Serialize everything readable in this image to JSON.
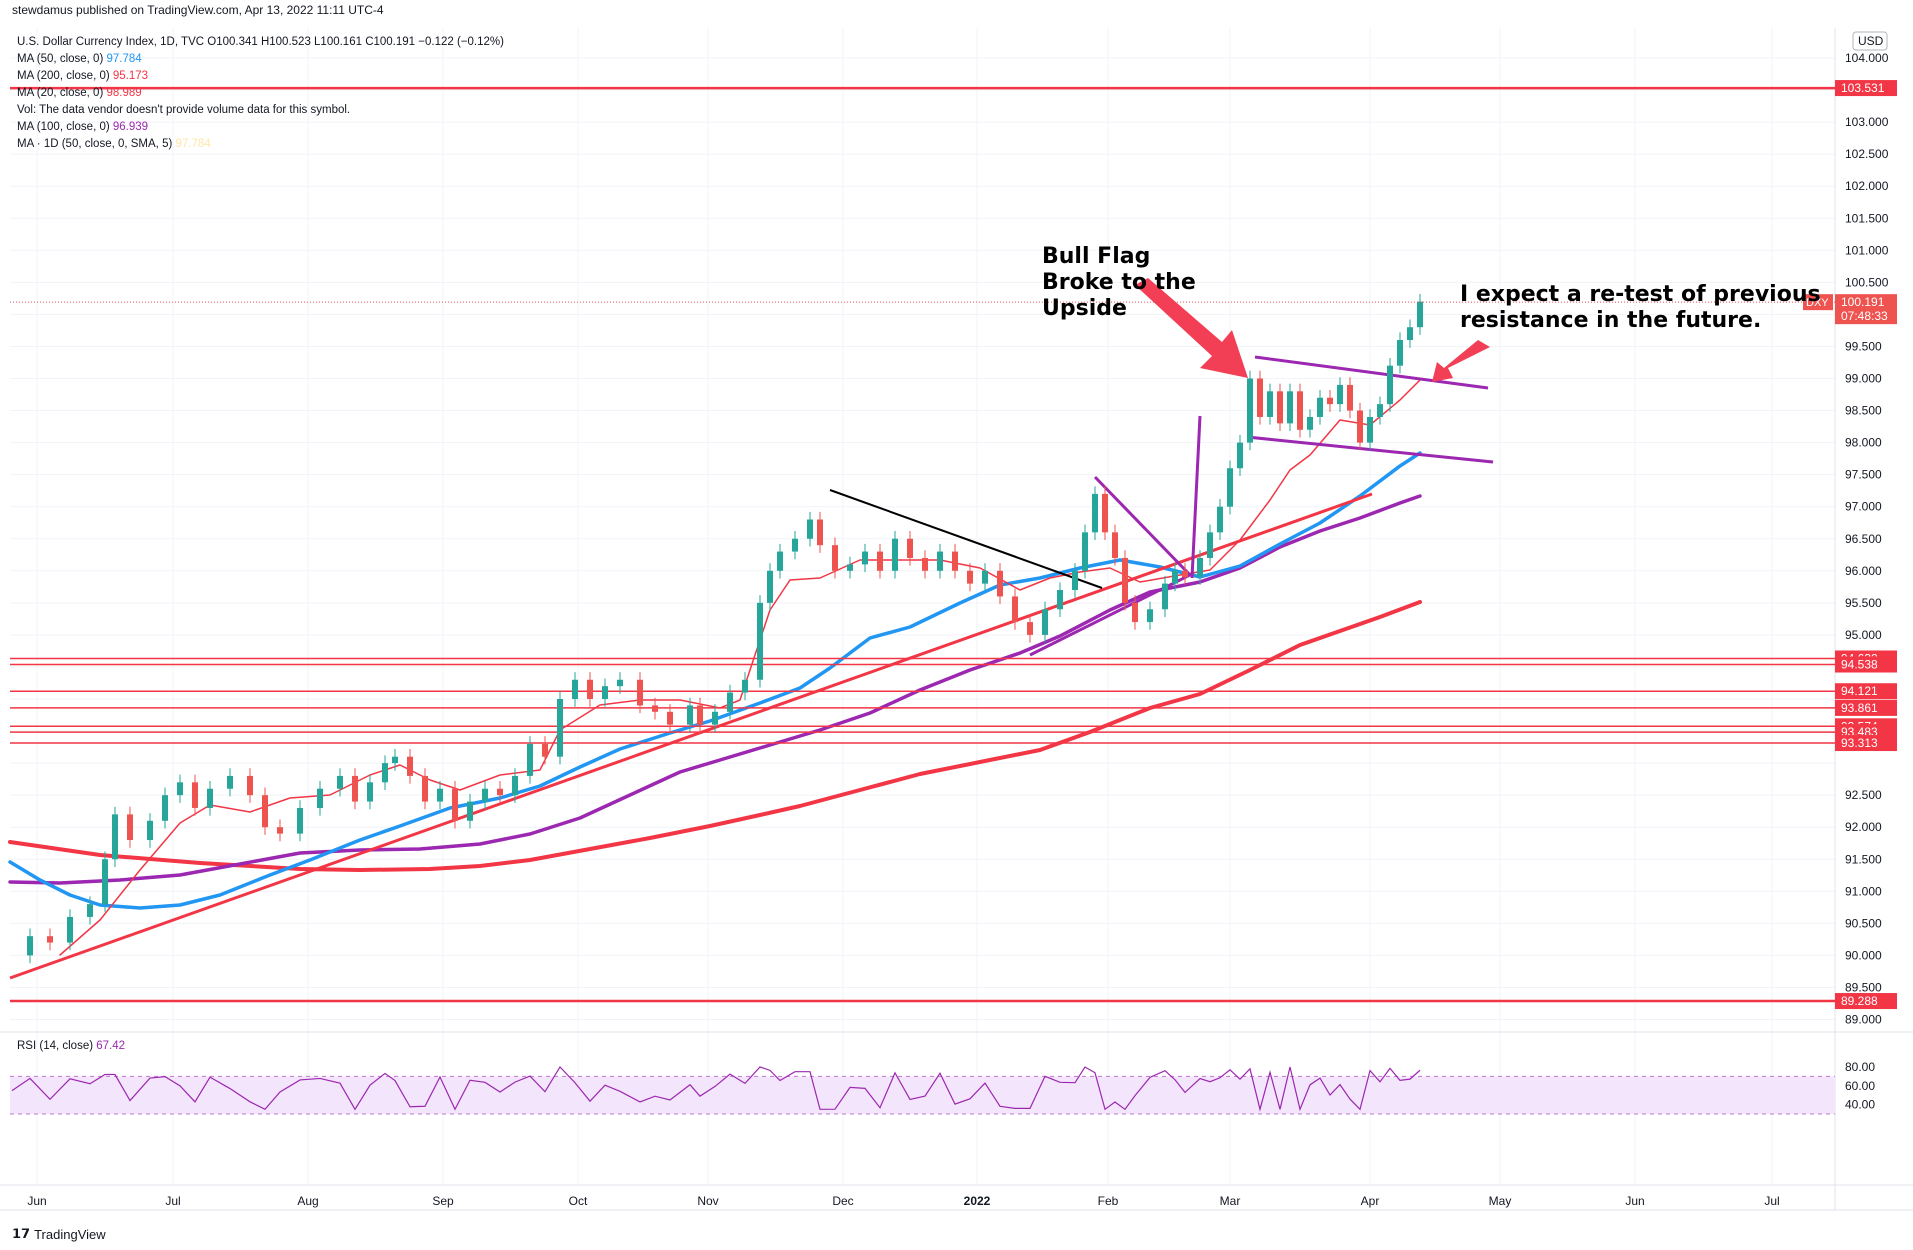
{
  "header": {
    "publisher": "stewdamus published on TradingView.com, Apr 13, 2022 11:11 UTC-4",
    "currency": "USD"
  },
  "legend": {
    "title": "U.S. Dollar Currency Index, 1D, TVC",
    "ohlc": "O100.341 H100.523 L100.161 C100.191 −0.122 (−0.12%)",
    "lines": [
      {
        "label": "MA (50, close, 0)",
        "value": "97.784",
        "color": "#2196f3"
      },
      {
        "label": "MA (200, close, 0)",
        "value": "95.173",
        "color": "#f23645"
      },
      {
        "label": "MA (20, close, 0)",
        "value": "98.989",
        "color": "#f23645"
      },
      {
        "label": "Vol: The data vendor doesn't provide volume data for this symbol.",
        "value": "",
        "color": "#131722"
      },
      {
        "label": "MA (100, close, 0)",
        "value": "96.939",
        "color": "#9c27b0"
      },
      {
        "label": "MA · 1D (50, close, 0, SMA, 5)",
        "value": "97.784",
        "color": "#ffe6a8"
      }
    ]
  },
  "annotations": {
    "bull_flag": [
      "Bull Flag",
      "Broke to the",
      "Upside"
    ],
    "retest": [
      "I expect a re-test of previous",
      "resistance in the future."
    ]
  },
  "rsi": {
    "label": "RSI (14, close)",
    "value": "67.42"
  },
  "footer": {
    "brand": "TradingView"
  },
  "chart_data": {
    "type": "candlestick",
    "symbol": "DXY",
    "current_price": "100.191",
    "countdown": "07:48:33",
    "y_axis": {
      "min": 89.0,
      "max": 104.0,
      "ticks": [
        "104.000",
        "103.000",
        "102.500",
        "102.000",
        "101.500",
        "101.000",
        "100.500",
        "99.500",
        "99.000",
        "98.500",
        "98.000",
        "97.500",
        "97.000",
        "96.500",
        "96.000",
        "95.500",
        "95.000",
        "92.500",
        "92.000",
        "91.500",
        "91.000",
        "90.500",
        "90.000",
        "89.500",
        "89.000"
      ]
    },
    "x_axis": {
      "labels": [
        "Jun",
        "Jul",
        "Aug",
        "Sep",
        "Oct",
        "Nov",
        "Dec",
        "2022",
        "Feb",
        "Mar",
        "Apr",
        "May",
        "Jun",
        "Jul"
      ]
    },
    "horizontal_levels": [
      {
        "value": 103.531,
        "label": "103.531"
      },
      {
        "value": 94.632,
        "label": "94.632"
      },
      {
        "value": 94.538,
        "label": "94.538"
      },
      {
        "value": 94.121,
        "label": "94.121"
      },
      {
        "value": 93.861,
        "label": "93.861"
      },
      {
        "value": 93.574,
        "label": "93.574"
      },
      {
        "value": 93.483,
        "label": "93.483"
      },
      {
        "value": 93.313,
        "label": "93.313"
      },
      {
        "value": 89.288,
        "label": "89.288"
      }
    ],
    "rsi_axis": {
      "ticks": [
        "80.00",
        "60.00",
        "40.00"
      ],
      "upper": 70,
      "lower": 30
    },
    "colors": {
      "up": "#26a69a",
      "down": "#ef5350",
      "ma20": "#f23645",
      "ma50": "#2196f3",
      "ma100": "#9c27b0",
      "ma200": "#f23645",
      "trend": "#f23645",
      "level": "#f23645",
      "rsi": "#9c27b0",
      "flag": "#9c27b0",
      "arrow": "#f23f55"
    }
  }
}
